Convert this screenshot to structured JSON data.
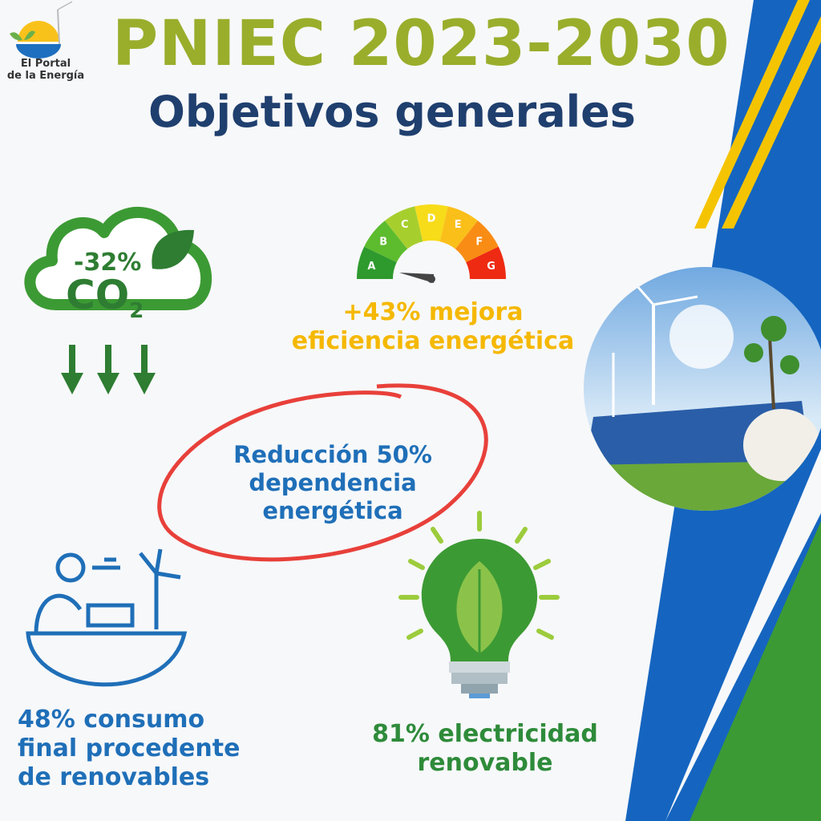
{
  "logo": {
    "line1": "El Portal",
    "line2": "de la Energía"
  },
  "header": {
    "title": "PNIEC 2023-2030",
    "subtitle": "Objetivos generales"
  },
  "co2": {
    "percent": "-32%",
    "label": "CO",
    "subscript": "2"
  },
  "efficiency": {
    "gauge_labels": [
      "A",
      "B",
      "C",
      "D",
      "E",
      "F",
      "G"
    ],
    "line1": "+43% mejora",
    "line2": "eficiencia energética"
  },
  "dependency": {
    "line1": "Reducción 50%",
    "line2": "dependencia",
    "line3": "energética"
  },
  "renewable_consumption": {
    "line1": "48% consumo",
    "line2": "final procedente",
    "line3": "de renovables"
  },
  "electricity": {
    "line1": "81% electricidad",
    "line2": "renovable"
  },
  "colors": {
    "title": "#9aae2c",
    "subtitle": "#1f3f6e",
    "blue_text": "#1f6fb8",
    "green": "#2e8b3a",
    "yellow": "#f5b800",
    "red_circle": "#e8403a",
    "band_blue": "#1565c0",
    "band_green": "#3c9a34"
  }
}
